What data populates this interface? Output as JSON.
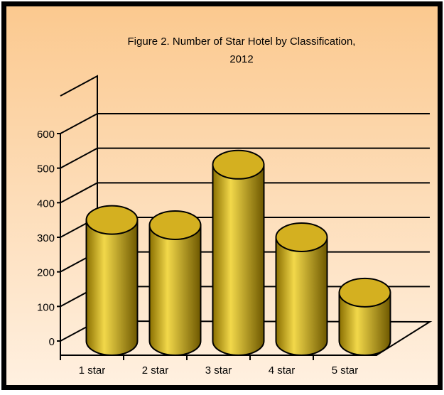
{
  "chart_data": {
    "type": "bar",
    "title": "Figure 2. Number of Star Hotel by Classification,",
    "subtitle": "2012",
    "categories": [
      "1 star",
      "2 star",
      "3 star",
      "4 star",
      "5 star"
    ],
    "values": [
      350,
      335,
      510,
      300,
      140
    ],
    "color": "#d4b020",
    "ylim": [
      0,
      600
    ],
    "yticks": [
      0,
      100,
      200,
      300,
      400,
      500,
      600
    ],
    "grid": true
  }
}
